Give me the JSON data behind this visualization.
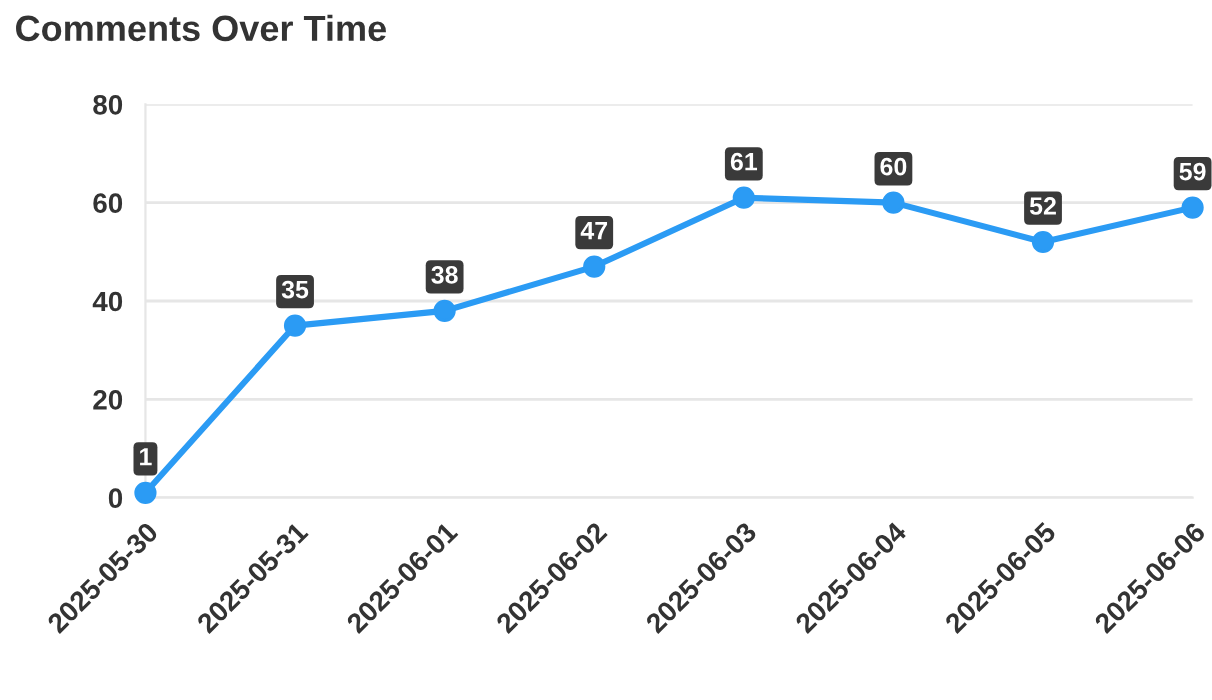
{
  "chart_data": {
    "type": "line",
    "title": "Comments Over Time",
    "categories": [
      "2025-05-30",
      "2025-05-31",
      "2025-06-01",
      "2025-06-02",
      "2025-06-03",
      "2025-06-04",
      "2025-06-05",
      "2025-06-06"
    ],
    "series": [
      {
        "color": "#2b9bf4",
        "values": [
          1,
          35,
          38,
          47,
          61,
          60,
          52,
          59
        ]
      }
    ],
    "ylim": [
      0,
      80
    ],
    "yticks": [
      0,
      20,
      40,
      60,
      80
    ],
    "grid": "y",
    "marker": "circle",
    "line_style": "solid",
    "data_labels": true,
    "legend": false
  }
}
